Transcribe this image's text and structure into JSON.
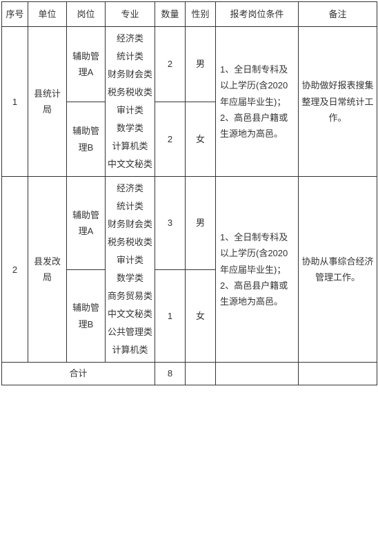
{
  "headers": {
    "seq": "序号",
    "unit": "单位",
    "post": "岗位",
    "major": "专业",
    "qty": "数量",
    "sex": "性别",
    "cond": "报考岗位条件",
    "remark": "备注"
  },
  "rows": [
    {
      "seq": "1",
      "unit": "县统计局",
      "posts": [
        {
          "post": "辅助管理A",
          "qty": "2",
          "sex": "男"
        },
        {
          "post": "辅助管理B",
          "qty": "2",
          "sex": "女"
        }
      ],
      "major": "经济类\n统计类\n财务财会类\n税务税收类\n审计类\n数学类\n计算机类\n中文文秘类",
      "cond": "1、全日制专科及以上学历(含2020年应届毕业生)；\n2、高邑县户籍或生源地为高邑。",
      "remark": "协助做好报表搜集整理及日常统计工作。"
    },
    {
      "seq": "2",
      "unit": "县发改局",
      "posts": [
        {
          "post": "辅助管理A",
          "qty": "3",
          "sex": "男"
        },
        {
          "post": "辅助管理B",
          "qty": "1",
          "sex": "女"
        }
      ],
      "major": "经济类\n统计类\n财务财会类\n税务税收类\n审计类\n数学类\n商务贸易类\n中文文秘类\n公共管理类\n计算机类",
      "cond": "1、全日制专科及以上学历(含2020年应届毕业生)；\n2、高邑县户籍或生源地为高邑。",
      "remark": "协助从事综合经济管理工作。"
    }
  ],
  "total": {
    "label": "合计",
    "qty": "8"
  },
  "colors": {
    "border": "#333333",
    "text": "#333333",
    "background": "#ffffff"
  }
}
